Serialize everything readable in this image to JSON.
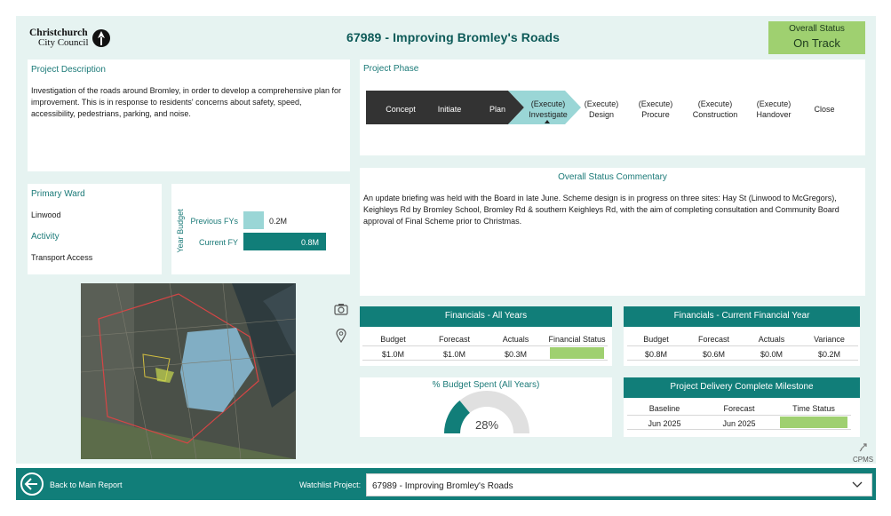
{
  "header": {
    "logo_line1": "Christchurch",
    "logo_line2": "City Council",
    "title": "67989 - Improving Bromley's Roads",
    "overall_status_label": "Overall Status",
    "overall_status_value": "On Track"
  },
  "description": {
    "label": "Project Description",
    "text": "Investigation of the roads around Bromley, in order to develop a comprehensive plan for improvement. This is in response to residents' concerns about safety, speed, accessibility, pedestrians, parking, and noise."
  },
  "phase": {
    "label": "Project Phase",
    "steps": [
      {
        "line1": "Concept",
        "line2": ""
      },
      {
        "line1": "Initiate",
        "line2": ""
      },
      {
        "line1": "Plan",
        "line2": ""
      },
      {
        "line1": "(Execute)",
        "line2": "Investigate"
      },
      {
        "line1": "(Execute)",
        "line2": "Design"
      },
      {
        "line1": "(Execute)",
        "line2": "Procure"
      },
      {
        "line1": "(Execute)",
        "line2": "Construction"
      },
      {
        "line1": "(Execute)",
        "line2": "Handover"
      },
      {
        "line1": "Close",
        "line2": ""
      }
    ],
    "current_index": 3
  },
  "ward": {
    "ward_label": "Primary Ward",
    "ward_value": "Linwood",
    "activity_label": "Activity",
    "activity_value": "Transport Access"
  },
  "year_budget": {
    "axis_label": "Year Budget",
    "chart_data": {
      "type": "bar",
      "categories": [
        "Previous FYs",
        "Current FY"
      ],
      "values": [
        0.2,
        0.8
      ],
      "value_labels": [
        "0.2M",
        "0.8M"
      ],
      "colors": [
        "#9ad6d6",
        "#117e79"
      ]
    }
  },
  "commentary": {
    "title": "Overall Status Commentary",
    "text": "An update briefing was held with the Board in late June. Scheme design is in progress on three sites: Hay St (Linwood to McGregors), Keighleys Rd by Bromley School, Bromley Rd & southern Keighleys Rd, with the aim of completing consultation and Community Board approval of Final Scheme prior to Christmas."
  },
  "fin_all": {
    "title": "Financials - All Years",
    "headers": [
      "Budget",
      "Forecast",
      "Actuals",
      "Financial Status"
    ],
    "values": [
      "$1.0M",
      "$1.0M",
      "$0.3M",
      ""
    ],
    "status_color": "#9fd070"
  },
  "fin_current": {
    "title": "Financials - Current Financial Year",
    "headers": [
      "Budget",
      "Forecast",
      "Actuals",
      "Variance"
    ],
    "values": [
      "$0.8M",
      "$0.6M",
      "$0.0M",
      "$0.2M"
    ]
  },
  "budget_spent": {
    "title": "% Budget Spent (All Years)",
    "value_label": "28%",
    "fraction": 0.28,
    "fill_color": "#117e79",
    "track_color": "#e0e0e0"
  },
  "milestone": {
    "title": "Project Delivery Complete Milestone",
    "headers": [
      "Baseline",
      "Forecast",
      "Time Status"
    ],
    "values": [
      "Jun 2025",
      "Jun 2025",
      ""
    ],
    "status_color": "#9fd070"
  },
  "cpms_label": "CPMS",
  "footer": {
    "back_label": "Back to Main Report",
    "watchlist_label": "Watchlist Project:",
    "watchlist_value": "67989 - Improving Bromley's Roads"
  },
  "colors": {
    "accent": "#117e79",
    "background": "#e6f3f1",
    "status_green": "#9fd070"
  }
}
